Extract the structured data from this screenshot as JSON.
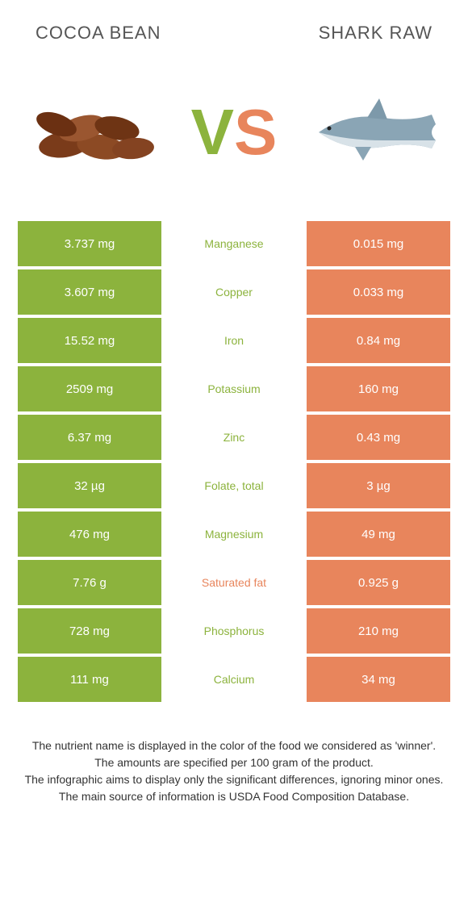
{
  "header": {
    "left_title": "COCOA BEAN",
    "right_title": "SHARK RAW",
    "vs_v": "V",
    "vs_s": "S"
  },
  "colors": {
    "green": "#8cb33d",
    "orange": "#e8855c",
    "text": "#333333",
    "bg": "#ffffff"
  },
  "nutrient_table": {
    "rows": [
      {
        "left": "3.737 mg",
        "name": "Manganese",
        "right": "0.015 mg",
        "winner": "green"
      },
      {
        "left": "3.607 mg",
        "name": "Copper",
        "right": "0.033 mg",
        "winner": "green"
      },
      {
        "left": "15.52 mg",
        "name": "Iron",
        "right": "0.84 mg",
        "winner": "green"
      },
      {
        "left": "2509 mg",
        "name": "Potassium",
        "right": "160 mg",
        "winner": "green"
      },
      {
        "left": "6.37 mg",
        "name": "Zinc",
        "right": "0.43 mg",
        "winner": "green"
      },
      {
        "left": "32 µg",
        "name": "Folate, total",
        "right": "3 µg",
        "winner": "green"
      },
      {
        "left": "476 mg",
        "name": "Magnesium",
        "right": "49 mg",
        "winner": "green"
      },
      {
        "left": "7.76 g",
        "name": "Saturated fat",
        "right": "0.925 g",
        "winner": "orange"
      },
      {
        "left": "728 mg",
        "name": "Phosphorus",
        "right": "210 mg",
        "winner": "green"
      },
      {
        "left": "111 mg",
        "name": "Calcium",
        "right": "34 mg",
        "winner": "green"
      }
    ]
  },
  "footer_lines": [
    "The nutrient name is displayed in the color of the food we considered as 'winner'.",
    "The amounts are specified per 100 gram of the product.",
    "The infographic aims to display only the significant differences, ignoring minor ones.",
    "The main source of information is USDA Food Composition Database."
  ]
}
